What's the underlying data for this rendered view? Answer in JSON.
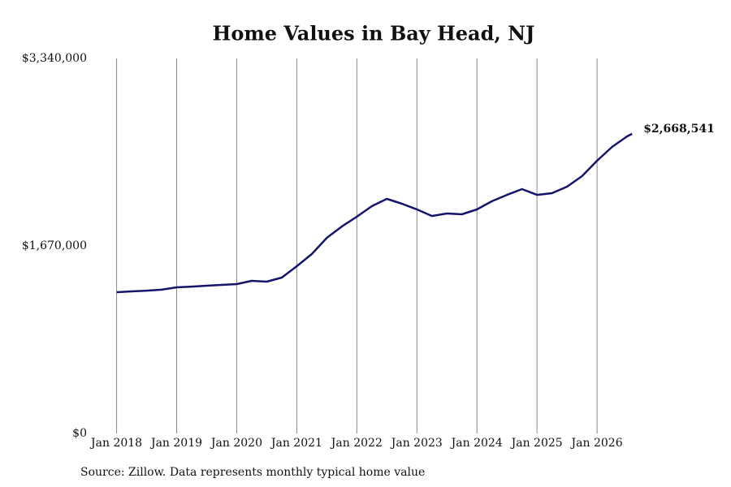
{
  "chart_data": {
    "type": "line",
    "title": "Home Values in Bay Head, NJ",
    "source": "Source: Zillow. Data represents monthly typical home value",
    "x": [
      2018.0,
      2018.25,
      2018.5,
      2018.75,
      2019.0,
      2019.25,
      2019.5,
      2019.75,
      2020.0,
      2020.25,
      2020.5,
      2020.75,
      2021.0,
      2021.25,
      2021.5,
      2021.75,
      2022.0,
      2022.25,
      2022.5,
      2022.75,
      2023.0,
      2023.25,
      2023.5,
      2023.75,
      2024.0,
      2024.25,
      2024.5,
      2024.75,
      2025.0,
      2025.25,
      2025.5,
      2025.75,
      2026.0,
      2026.25,
      2026.5,
      2026.583
    ],
    "values": [
      1258000,
      1265000,
      1272000,
      1280000,
      1301000,
      1308000,
      1316000,
      1323000,
      1330000,
      1359000,
      1352000,
      1388000,
      1489000,
      1598000,
      1742000,
      1843000,
      1930000,
      2024000,
      2089000,
      2046000,
      1995000,
      1937000,
      1959000,
      1952000,
      1995000,
      2068000,
      2125000,
      2176000,
      2125000,
      2140000,
      2198000,
      2292000,
      2429000,
      2552000,
      2646000,
      2668541
    ],
    "value_labels": [
      null,
      null,
      null,
      null,
      null,
      null,
      null,
      null,
      null,
      null,
      null,
      null,
      null,
      null,
      null,
      null,
      null,
      null,
      null,
      null,
      null,
      null,
      null,
      null,
      null,
      null,
      null,
      null,
      null,
      null,
      null,
      null,
      null,
      null,
      null,
      "$2,668,541"
    ],
    "color": "#14146b",
    "xlim": [
      2017.6,
      2027.5
    ],
    "xticks": [
      {
        "value": 2018,
        "label": "Jan 2018"
      },
      {
        "value": 2019,
        "label": "Jan 2019"
      },
      {
        "value": 2020,
        "label": "Jan 2020"
      },
      {
        "value": 2021,
        "label": "Jan 2021"
      },
      {
        "value": 2022,
        "label": "Jan 2022"
      },
      {
        "value": 2023,
        "label": "Jan 2023"
      },
      {
        "value": 2024,
        "label": "Jan 2024"
      },
      {
        "value": 2025,
        "label": "Jan 2025"
      },
      {
        "value": 2026,
        "label": "Jan 2026"
      }
    ],
    "ylim": [
      0,
      3340000
    ],
    "yticks": [
      {
        "value": 0,
        "label": "$0"
      },
      {
        "value": 1670000,
        "label": "$1,670,000"
      },
      {
        "value": 3340000,
        "label": "$3,340,000"
      }
    ],
    "grid": "x"
  }
}
